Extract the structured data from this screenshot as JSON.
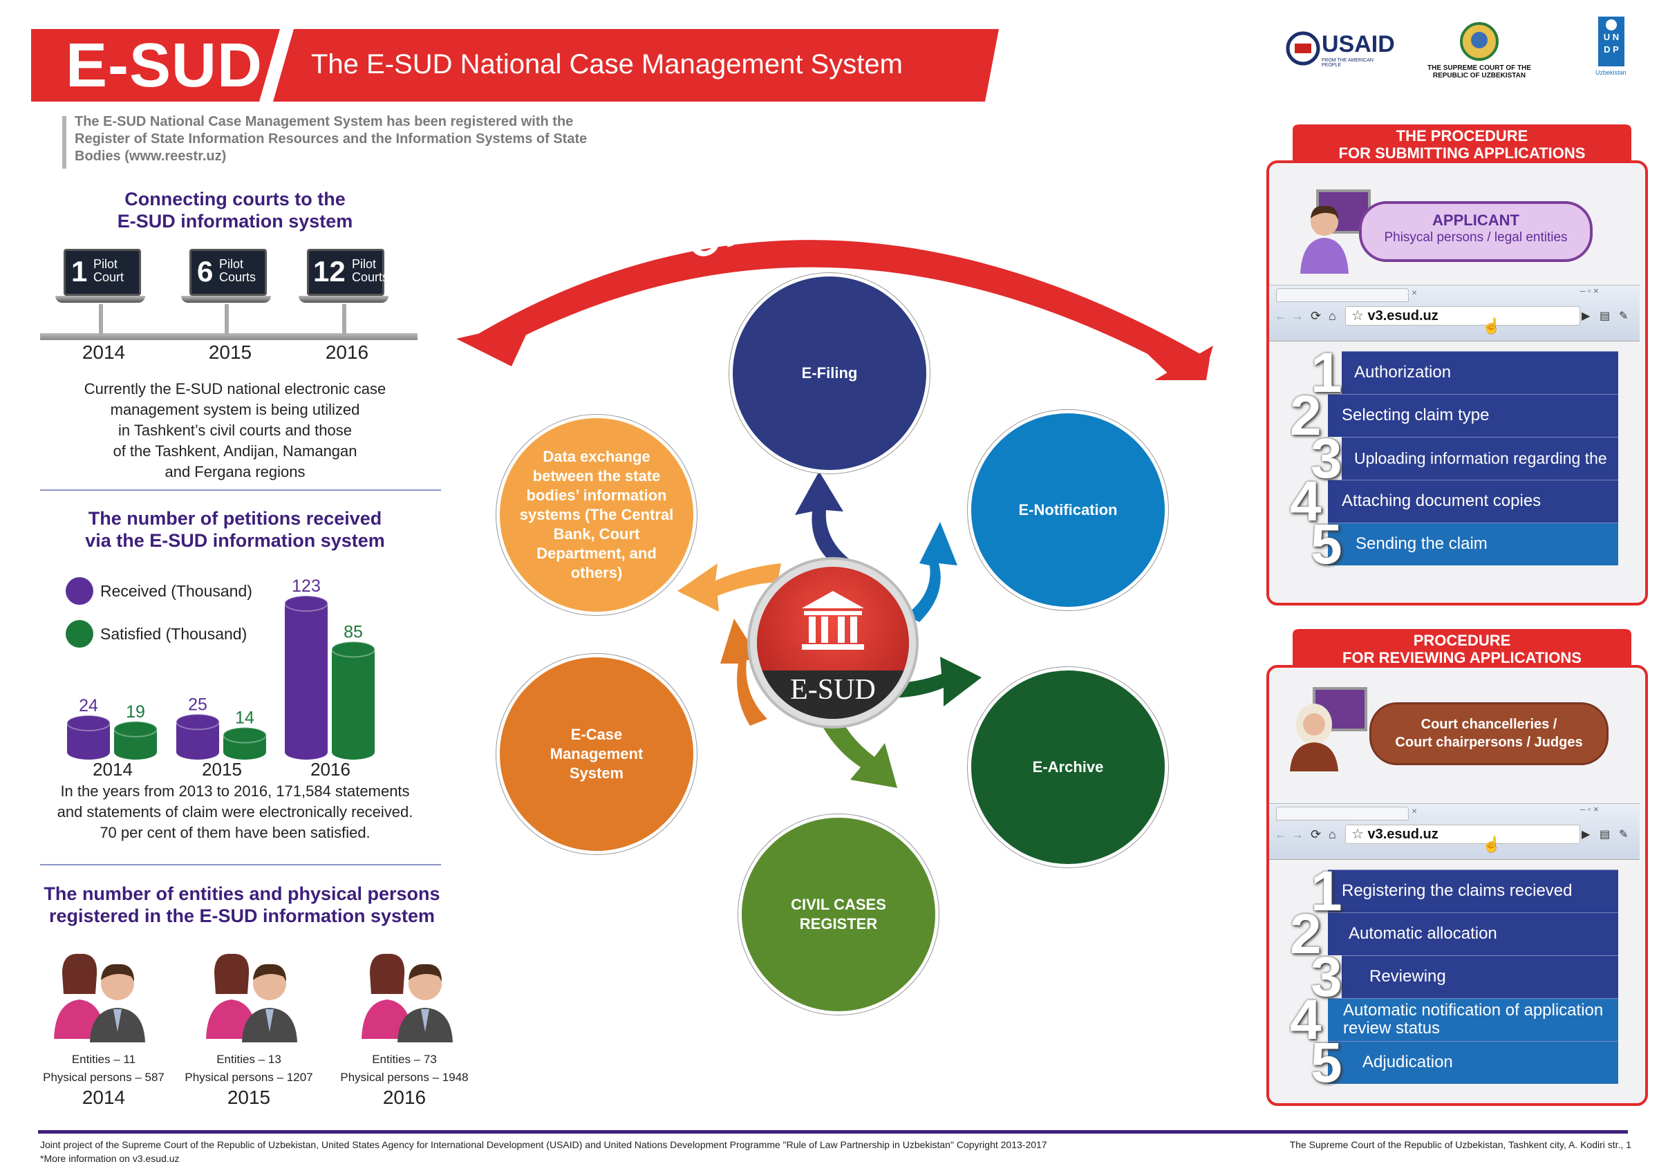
{
  "header": {
    "logo": "E-SUD",
    "title": "The E-SUD National Case Management System",
    "intro": "The E-SUD National Case Management System has been registered with the Register of State Information Resources and the Information Systems of State Bodies (www.reestr.uz)"
  },
  "partners": {
    "usaid": "USAID",
    "usaid_tagline": "FROM THE AMERICAN PEOPLE",
    "supreme_court": "THE SUPREME COURT OF THE REPUBLIC OF UZBEKISTAN",
    "undp": "UNDP",
    "undp_sub": "Uzbekistan"
  },
  "connecting": {
    "title_line1": "Connecting courts to the",
    "title_line2": "E-SUD information system",
    "laptops": [
      {
        "num": "1",
        "line1": "Pilot",
        "line2": "Court",
        "year": "2014"
      },
      {
        "num": "6",
        "line1": "Pilot",
        "line2": "Courts",
        "year": "2015"
      },
      {
        "num": "12",
        "line1": "Pilot",
        "line2": "Courts",
        "year": "2016"
      }
    ],
    "text_lines": [
      "Currently the E-SUD national electronic case",
      "management system is being utilized",
      "in Tashkent’s civil courts and those",
      "of the Tashkent, Andijan, Namangan",
      "and Fergana regions"
    ]
  },
  "petitions": {
    "title_line1": "The number of petitions received",
    "title_line2": "via the E-SUD information system",
    "note_lines": [
      "In the years from 2013 to 2016, 171,584 statements",
      "and statements of claim were electronically received.",
      "70 per cent of them have been satisfied."
    ]
  },
  "chart_data": {
    "type": "bar",
    "categories": [
      "2014",
      "2015",
      "2016"
    ],
    "series": [
      {
        "name": "Received (Thousand)",
        "values": [
          24,
          25,
          123
        ],
        "color": "#5b2f97"
      },
      {
        "name": "Satisfied (Thousand)",
        "values": [
          19,
          14,
          85
        ],
        "color": "#1b7a3a"
      }
    ],
    "legend_position": "top-left",
    "ylim": [
      0,
      123
    ]
  },
  "entities": {
    "title_line1": "The number of entities and physical persons",
    "title_line2": "registered in the E-SUD information system",
    "items": [
      {
        "entities": "Entities  –  11",
        "persons": "Physical persons – 587",
        "year": "2014"
      },
      {
        "entities": "Entities  –  13",
        "persons": "Physical persons – 1207",
        "year": "2015"
      },
      {
        "entities": "Entities  –  73",
        "persons": "Physical persons – 1948",
        "year": "2016"
      }
    ]
  },
  "center": {
    "arc_label": "CIVIL COURTS",
    "hub_label": "E-SUD",
    "nodes": {
      "efiling": "E-Filing",
      "enotification": "E-Notification",
      "earchive": "E-Archive",
      "register_line1": "CIVIL CASES",
      "register_line2": "REGISTER",
      "ecase_lines": [
        "E-Case",
        "Management",
        "System"
      ],
      "exchange_lines": [
        "Data exchange",
        "between the state",
        "bodies’ information",
        "systems (The Central",
        "Bank, Court",
        "Department, and",
        "others)"
      ]
    },
    "colors": {
      "efiling": "#2e3a82",
      "enotification": "#0f7fc4",
      "earchive": "#175e2c",
      "register": "#5a8c2e",
      "ecase": "#e07a27",
      "exchange": "#f4a446",
      "arc": "#e22b2b",
      "hub": "#c8231f"
    }
  },
  "submit_panel": {
    "head_line1": "THE PROCEDURE",
    "head_line2": "FOR SUBMITTING APPLICATIONS",
    "pill_line1": "APPLICANT",
    "pill_line2": "Phisycal persons / legal entities",
    "url": "v3.esud.uz",
    "steps": [
      {
        "num": "1",
        "label": "Authorization"
      },
      {
        "num": "2",
        "label": "Selecting claim type"
      },
      {
        "num": "3",
        "label": "Uploading information regarding the debtor"
      },
      {
        "num": "4",
        "label": "Attaching document copies"
      },
      {
        "num": "5",
        "label": "Sending the claim"
      }
    ]
  },
  "review_panel": {
    "head_line1": "PROCEDURE",
    "head_line2": "FOR REVIEWING APPLICATIONS",
    "pill_line1": "Court chancelleries /",
    "pill_line2": "Court chairpersons / Judges",
    "url": "v3.esud.uz",
    "steps": [
      {
        "num": "1",
        "label": "Registering the claims recieved"
      },
      {
        "num": "2",
        "label": "Automatic allocation"
      },
      {
        "num": "3",
        "label": "Reviewing"
      },
      {
        "num": "4",
        "label_line1": "Automatic notification of application",
        "label_line2": "review status"
      },
      {
        "num": "5",
        "label": "Adjudication"
      }
    ]
  },
  "footer": {
    "left_line1": "Joint project of the Supreme Court of the Republic of Uzbekistan, United States Agency for International Development (USAID) and United Nations Development Programme \"Rule of Law Partnership in Uzbekistan\" Copyright 2013-2017",
    "left_line2": "*More information on v3.esud.uz",
    "right": "The Supreme Court of the Republic of Uzbekistan, Tashkent city, A. Kodiri str., 1"
  }
}
